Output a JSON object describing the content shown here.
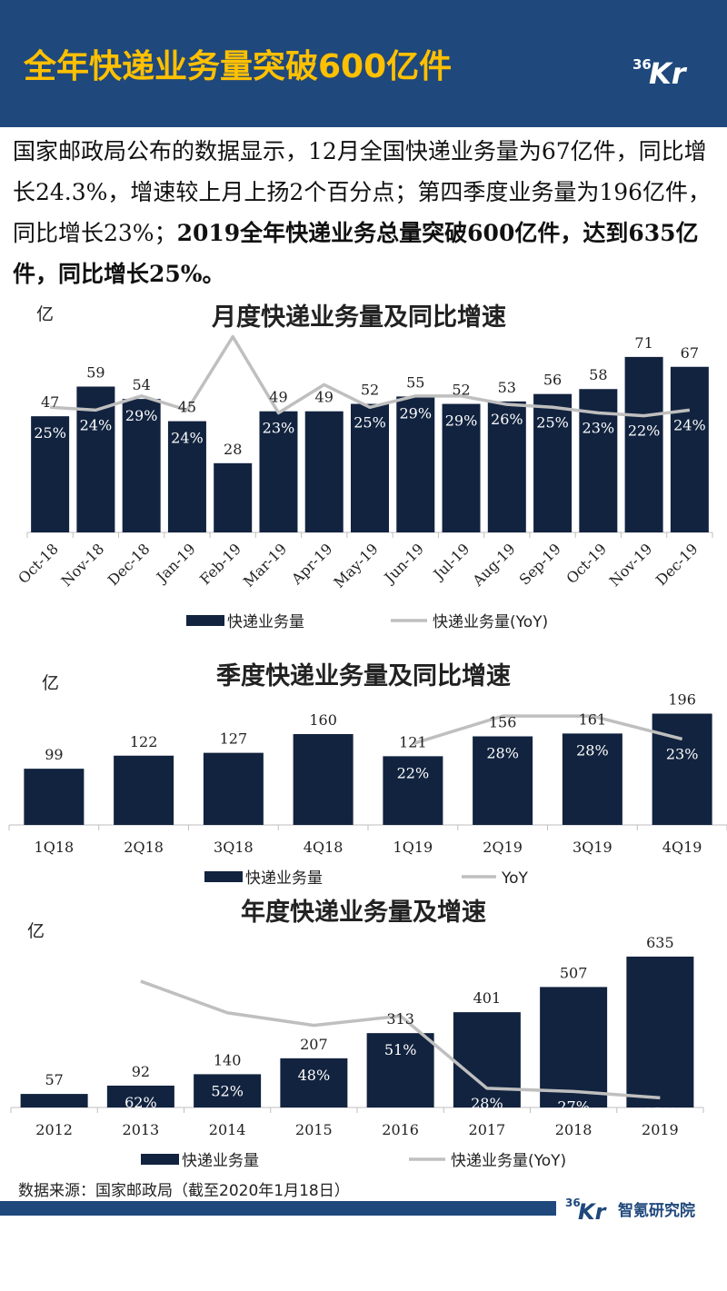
{
  "header": {
    "title": "全年快递业务量突破600亿件",
    "logo_text": "36Kr",
    "colors": {
      "band": "#1F487C",
      "title": "#FFC000"
    }
  },
  "intro": {
    "normal": "国家邮政局公布的数据显示，12月全国快递业务量为67亿件，同比增长24.3%，增速较上月上扬2个百分点；第四季度业务量为196亿件，同比增长23%；",
    "bold": "2019全年快递业务总量突破600亿件，达到635亿件，同比增长25%。"
  },
  "chart_data": [
    {
      "type": "bar",
      "title": "月度快递业务量及同比增速",
      "unit": "亿",
      "categories": [
        "Oct-18",
        "Nov-18",
        "Dec-18",
        "Jan-19",
        "Feb-19",
        "Mar-19",
        "Apr-19",
        "May-19",
        "Jun-19",
        "Jul-19",
        "Aug-19",
        "Sep-19",
        "Oct-19",
        "Nov-19",
        "Dec-19"
      ],
      "series": [
        {
          "name": "快递业务量",
          "kind": "bar",
          "color": "#12233F",
          "values": [
            47,
            59,
            54,
            45,
            28,
            49,
            49,
            52,
            55,
            52,
            53,
            56,
            58,
            71,
            67
          ],
          "labels": [
            "47",
            "59",
            "54",
            "45",
            "28",
            "49",
            "49",
            "52",
            "55",
            "52",
            "53",
            "56",
            "58",
            "71",
            "67"
          ]
        },
        {
          "name": "快递业务量(YoY)",
          "kind": "line",
          "color": "#BFBFBF",
          "values": [
            25,
            24,
            29,
            24,
            50,
            23,
            33,
            25,
            29,
            29,
            26,
            25,
            23,
            22,
            24
          ],
          "labels": [
            "25%",
            "24%",
            "29%",
            "24%",
            "",
            "23%",
            "",
            "25%",
            "29%",
            "29%",
            "26%",
            "25%",
            "23%",
            "22%",
            "24%"
          ]
        }
      ],
      "ylim": [
        0,
        75
      ],
      "yoy_range": [
        0,
        55
      ]
    },
    {
      "type": "bar",
      "title": "季度快递业务量及同比增速",
      "unit": "亿",
      "categories": [
        "1Q18",
        "2Q18",
        "3Q18",
        "4Q18",
        "1Q19",
        "2Q19",
        "3Q19",
        "4Q19"
      ],
      "series": [
        {
          "name": "快递业务量",
          "kind": "bar",
          "color": "#12233F",
          "values": [
            99,
            122,
            127,
            160,
            121,
            156,
            161,
            196
          ],
          "labels": [
            "99",
            "122",
            "127",
            "160",
            "121",
            "156",
            "161",
            "196"
          ]
        },
        {
          "name": "YoY",
          "kind": "line",
          "color": "#BFBFBF",
          "values": [
            null,
            null,
            null,
            null,
            22,
            28,
            28,
            23
          ],
          "labels": [
            "",
            "",
            "",
            "",
            "22%",
            "28%",
            "28%",
            "23%"
          ]
        }
      ],
      "ylim": [
        0,
        200
      ],
      "yoy_range": [
        0,
        30
      ]
    },
    {
      "type": "bar",
      "title": "年度快递业务量及增速",
      "unit": "亿",
      "categories": [
        "2012",
        "2013",
        "2014",
        "2015",
        "2016",
        "2017",
        "2018",
        "2019"
      ],
      "series": [
        {
          "name": "快递业务量",
          "kind": "bar",
          "color": "#12233F",
          "values": [
            57,
            92,
            140,
            207,
            313,
            401,
            507,
            635
          ],
          "labels": [
            "57",
            "92",
            "140",
            "207",
            "313",
            "401",
            "507",
            "635"
          ]
        },
        {
          "name": "快递业务量(YoY)",
          "kind": "line",
          "color": "#BFBFBF",
          "values": [
            null,
            62,
            52,
            48,
            51,
            28,
            27,
            25
          ],
          "labels": [
            "",
            "62%",
            "52%",
            "48%",
            "51%",
            "28%",
            "27%",
            "25%"
          ]
        }
      ],
      "ylim": [
        0,
        650
      ],
      "yoy_range": [
        0,
        75
      ]
    }
  ],
  "footer": {
    "source": "数据来源：国家邮政局（截至2020年1月18日）",
    "brand": "智氪研究院",
    "logo_text": "36Kr"
  }
}
